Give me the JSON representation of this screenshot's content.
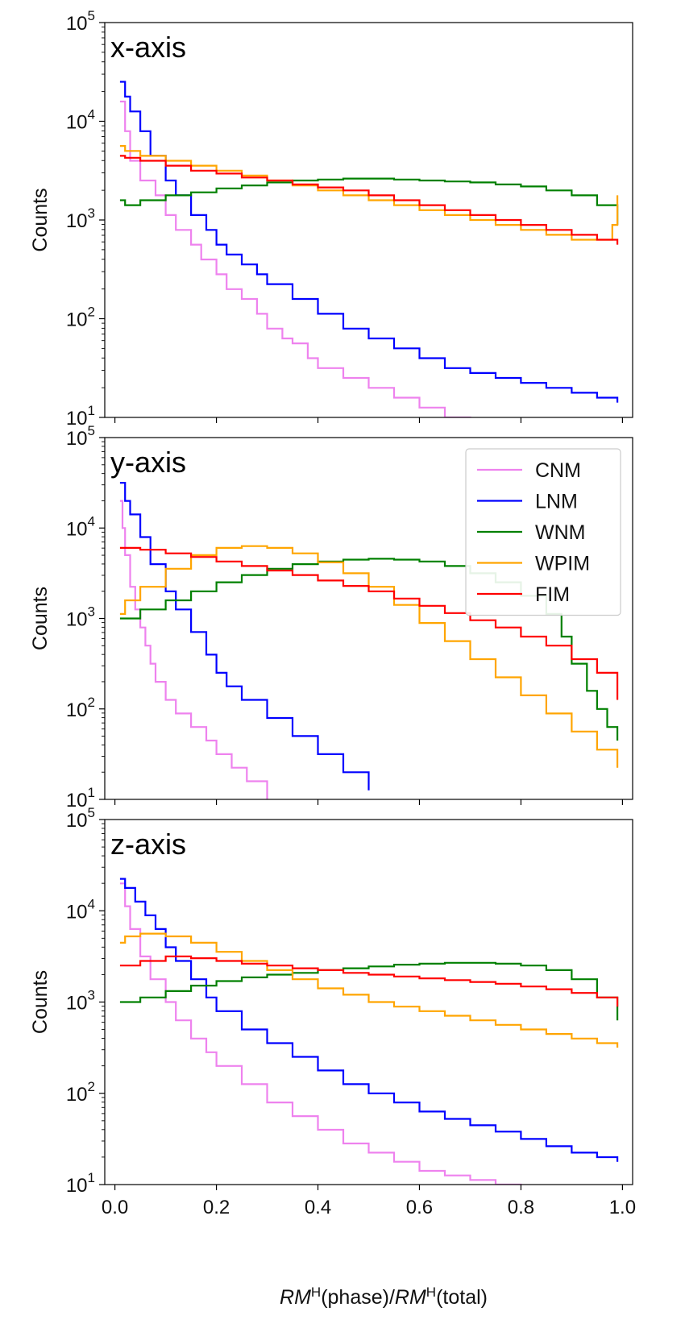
{
  "chart_data": {
    "type": "histogram",
    "shared_xlabel": "RMᴴ(phase)/RMᴴ(total)",
    "xlabel_parts": {
      "rm": "RM",
      "sup": "H",
      "phase": "(phase)/",
      "total": "(total)"
    },
    "xlim": [
      -0.02,
      1.02
    ],
    "x_ticks": [
      0.0,
      0.2,
      0.4,
      0.6,
      0.8,
      1.0
    ],
    "x_tick_labels": [
      "0.0",
      "0.2",
      "0.4",
      "0.6",
      "0.8",
      "1.0"
    ],
    "y_tick_labels": [
      {
        "base": "10",
        "exp": "1"
      },
      {
        "base": "10",
        "exp": "2"
      },
      {
        "base": "10",
        "exp": "3"
      },
      {
        "base": "10",
        "exp": "4"
      },
      {
        "base": "10",
        "exp": "5"
      }
    ],
    "colors": {
      "CNM": "#ee82ee",
      "LNM": "#0000ff",
      "WNM": "#008000",
      "WPIM": "#ffa500",
      "FIM": "#ff0000"
    },
    "legend": {
      "placement": "top-right",
      "panel": "y-axis",
      "entries": [
        "CNM",
        "LNM",
        "WNM",
        "WPIM",
        "FIM"
      ]
    },
    "panels": [
      {
        "label": "x-axis",
        "ylabel": "Counts",
        "ylim_log10": [
          1.0,
          5.0
        ],
        "show_x_tick_labels": false,
        "series": [
          {
            "name": "CNM",
            "x": [
              0.01,
              0.02,
              0.03,
              0.05,
              0.08,
              0.1,
              0.12,
              0.15,
              0.17,
              0.2,
              0.22,
              0.25,
              0.28,
              0.3,
              0.33,
              0.35,
              0.38,
              0.4,
              0.45,
              0.5,
              0.55,
              0.6,
              0.65,
              0.7
            ],
            "logy": [
              4.2,
              3.9,
              3.6,
              3.4,
              3.25,
              3.05,
              2.9,
              2.75,
              2.6,
              2.45,
              2.3,
              2.2,
              2.05,
              1.9,
              1.8,
              1.75,
              1.6,
              1.5,
              1.4,
              1.3,
              1.2,
              1.1,
              1.0,
              0.9
            ]
          },
          {
            "name": "LNM",
            "x": [
              0.01,
              0.02,
              0.03,
              0.05,
              0.07,
              0.1,
              0.12,
              0.15,
              0.18,
              0.2,
              0.22,
              0.25,
              0.28,
              0.3,
              0.35,
              0.4,
              0.45,
              0.5,
              0.55,
              0.6,
              0.65,
              0.7,
              0.75,
              0.8,
              0.85,
              0.9,
              0.95,
              0.99
            ],
            "logy": [
              4.4,
              4.25,
              4.1,
              3.9,
              3.65,
              3.4,
              3.25,
              3.05,
              2.9,
              2.75,
              2.65,
              2.55,
              2.45,
              2.35,
              2.2,
              2.05,
              1.9,
              1.8,
              1.7,
              1.6,
              1.5,
              1.45,
              1.4,
              1.35,
              1.3,
              1.25,
              1.2,
              1.15
            ]
          },
          {
            "name": "WNM",
            "x": [
              0.01,
              0.02,
              0.05,
              0.1,
              0.15,
              0.2,
              0.25,
              0.3,
              0.35,
              0.4,
              0.45,
              0.5,
              0.55,
              0.6,
              0.65,
              0.7,
              0.75,
              0.8,
              0.85,
              0.9,
              0.95,
              0.99
            ],
            "logy": [
              3.2,
              3.15,
              3.2,
              3.25,
              3.28,
              3.32,
              3.35,
              3.38,
              3.4,
              3.41,
              3.42,
              3.42,
              3.41,
              3.4,
              3.39,
              3.38,
              3.36,
              3.34,
              3.3,
              3.25,
              3.15,
              2.95
            ]
          },
          {
            "name": "WPIM",
            "x": [
              0.01,
              0.02,
              0.05,
              0.1,
              0.15,
              0.2,
              0.25,
              0.3,
              0.35,
              0.4,
              0.45,
              0.5,
              0.55,
              0.6,
              0.65,
              0.7,
              0.75,
              0.8,
              0.85,
              0.9,
              0.95,
              0.98,
              0.99
            ],
            "logy": [
              3.75,
              3.7,
              3.65,
              3.6,
              3.55,
              3.5,
              3.45,
              3.4,
              3.35,
              3.3,
              3.25,
              3.2,
              3.15,
              3.1,
              3.05,
              3.0,
              2.95,
              2.9,
              2.85,
              2.8,
              2.8,
              2.95,
              3.25
            ]
          },
          {
            "name": "FIM",
            "x": [
              0.01,
              0.02,
              0.05,
              0.1,
              0.15,
              0.2,
              0.25,
              0.3,
              0.35,
              0.4,
              0.45,
              0.5,
              0.55,
              0.6,
              0.65,
              0.7,
              0.75,
              0.8,
              0.85,
              0.9,
              0.95,
              0.99
            ],
            "logy": [
              3.65,
              3.63,
              3.6,
              3.55,
              3.5,
              3.47,
              3.43,
              3.4,
              3.36,
              3.33,
              3.3,
              3.25,
              3.2,
              3.15,
              3.1,
              3.05,
              3.0,
              2.95,
              2.9,
              2.85,
              2.8,
              2.75
            ]
          }
        ]
      },
      {
        "label": "y-axis",
        "ylabel": "Counts",
        "ylim_log10": [
          1.0,
          5.0
        ],
        "show_x_tick_labels": false,
        "series": [
          {
            "name": "CNM",
            "x": [
              0.01,
              0.015,
              0.02,
              0.03,
              0.04,
              0.05,
              0.06,
              0.07,
              0.08,
              0.1,
              0.12,
              0.15,
              0.18,
              0.2,
              0.23,
              0.26,
              0.3
            ],
            "logy": [
              4.3,
              4.0,
              3.7,
              3.35,
              3.1,
              2.9,
              2.7,
              2.5,
              2.3,
              2.1,
              1.95,
              1.8,
              1.65,
              1.5,
              1.35,
              1.2,
              1.0
            ]
          },
          {
            "name": "LNM",
            "x": [
              0.01,
              0.02,
              0.03,
              0.05,
              0.07,
              0.1,
              0.12,
              0.15,
              0.18,
              0.2,
              0.22,
              0.25,
              0.3,
              0.35,
              0.4,
              0.45,
              0.5
            ],
            "logy": [
              4.5,
              4.3,
              4.15,
              3.9,
              3.6,
              3.3,
              3.1,
              2.85,
              2.6,
              2.4,
              2.25,
              2.1,
              1.9,
              1.7,
              1.5,
              1.3,
              1.1
            ]
          },
          {
            "name": "WNM",
            "x": [
              0.01,
              0.05,
              0.1,
              0.15,
              0.2,
              0.25,
              0.3,
              0.35,
              0.4,
              0.45,
              0.5,
              0.55,
              0.6,
              0.65,
              0.7,
              0.75,
              0.8,
              0.85,
              0.88,
              0.9,
              0.93,
              0.95,
              0.97,
              0.99
            ],
            "logy": [
              3.0,
              3.1,
              3.2,
              3.3,
              3.4,
              3.48,
              3.55,
              3.6,
              3.63,
              3.65,
              3.66,
              3.65,
              3.63,
              3.58,
              3.5,
              3.4,
              3.25,
              3.05,
              2.8,
              2.5,
              2.2,
              2.0,
              1.8,
              1.65
            ]
          },
          {
            "name": "WPIM",
            "x": [
              0.01,
              0.02,
              0.05,
              0.1,
              0.15,
              0.2,
              0.25,
              0.3,
              0.35,
              0.4,
              0.45,
              0.5,
              0.55,
              0.6,
              0.65,
              0.7,
              0.75,
              0.8,
              0.85,
              0.9,
              0.95,
              0.99
            ],
            "logy": [
              3.05,
              3.2,
              3.35,
              3.55,
              3.7,
              3.78,
              3.8,
              3.78,
              3.72,
              3.62,
              3.5,
              3.35,
              3.15,
              2.95,
              2.75,
              2.55,
              2.35,
              2.15,
              1.95,
              1.75,
              1.55,
              1.35
            ]
          },
          {
            "name": "FIM",
            "x": [
              0.01,
              0.05,
              0.1,
              0.15,
              0.2,
              0.25,
              0.3,
              0.35,
              0.4,
              0.45,
              0.5,
              0.55,
              0.6,
              0.65,
              0.7,
              0.75,
              0.8,
              0.85,
              0.9,
              0.95,
              0.99
            ],
            "logy": [
              3.78,
              3.76,
              3.72,
              3.68,
              3.63,
              3.58,
              3.53,
              3.48,
              3.42,
              3.36,
              3.3,
              3.22,
              3.14,
              3.06,
              2.98,
              2.9,
              2.8,
              2.7,
              2.55,
              2.4,
              2.1
            ]
          }
        ]
      },
      {
        "label": "z-axis",
        "ylabel": "Counts",
        "ylim_log10": [
          1.0,
          5.0
        ],
        "show_x_tick_labels": true,
        "series": [
          {
            "name": "CNM",
            "x": [
              0.01,
              0.02,
              0.03,
              0.05,
              0.07,
              0.1,
              0.12,
              0.15,
              0.18,
              0.2,
              0.25,
              0.3,
              0.35,
              0.4,
              0.45,
              0.5,
              0.55,
              0.6,
              0.65,
              0.7,
              0.75,
              0.8
            ],
            "logy": [
              4.3,
              4.05,
              3.8,
              3.5,
              3.25,
              3.0,
              2.8,
              2.6,
              2.45,
              2.3,
              2.1,
              1.9,
              1.75,
              1.6,
              1.45,
              1.35,
              1.25,
              1.15,
              1.1,
              1.05,
              1.0,
              0.95
            ]
          },
          {
            "name": "LNM",
            "x": [
              0.01,
              0.02,
              0.04,
              0.06,
              0.08,
              0.1,
              0.12,
              0.15,
              0.18,
              0.2,
              0.25,
              0.3,
              0.35,
              0.4,
              0.45,
              0.5,
              0.55,
              0.6,
              0.65,
              0.7,
              0.75,
              0.8,
              0.85,
              0.9,
              0.95,
              0.99
            ],
            "logy": [
              4.35,
              4.25,
              4.1,
              3.95,
              3.8,
              3.6,
              3.45,
              3.25,
              3.05,
              2.9,
              2.7,
              2.55,
              2.4,
              2.25,
              2.1,
              2.0,
              1.9,
              1.8,
              1.72,
              1.65,
              1.58,
              1.5,
              1.42,
              1.35,
              1.3,
              1.25
            ]
          },
          {
            "name": "WNM",
            "x": [
              0.01,
              0.05,
              0.1,
              0.15,
              0.2,
              0.25,
              0.3,
              0.35,
              0.4,
              0.45,
              0.5,
              0.55,
              0.6,
              0.65,
              0.7,
              0.75,
              0.8,
              0.85,
              0.9,
              0.95,
              0.99
            ],
            "logy": [
              3.0,
              3.05,
              3.12,
              3.18,
              3.23,
              3.27,
              3.3,
              3.32,
              3.35,
              3.37,
              3.39,
              3.41,
              3.42,
              3.43,
              3.43,
              3.42,
              3.4,
              3.35,
              3.25,
              3.05,
              2.8
            ]
          },
          {
            "name": "WPIM",
            "x": [
              0.01,
              0.02,
              0.05,
              0.1,
              0.15,
              0.2,
              0.25,
              0.3,
              0.35,
              0.4,
              0.45,
              0.5,
              0.55,
              0.6,
              0.65,
              0.7,
              0.75,
              0.8,
              0.85,
              0.9,
              0.95,
              0.99
            ],
            "logy": [
              3.65,
              3.72,
              3.75,
              3.72,
              3.65,
              3.55,
              3.45,
              3.35,
              3.25,
              3.15,
              3.08,
              3.0,
              2.95,
              2.9,
              2.85,
              2.8,
              2.75,
              2.7,
              2.65,
              2.6,
              2.55,
              2.5
            ]
          },
          {
            "name": "FIM",
            "x": [
              0.01,
              0.05,
              0.1,
              0.15,
              0.2,
              0.25,
              0.3,
              0.35,
              0.4,
              0.45,
              0.5,
              0.55,
              0.6,
              0.65,
              0.7,
              0.75,
              0.8,
              0.85,
              0.9,
              0.95,
              0.99
            ],
            "logy": [
              3.4,
              3.45,
              3.5,
              3.48,
              3.45,
              3.42,
              3.4,
              3.37,
              3.35,
              3.32,
              3.3,
              3.28,
              3.26,
              3.24,
              3.22,
              3.2,
              3.17,
              3.14,
              3.1,
              3.05,
              2.95
            ]
          }
        ]
      }
    ]
  }
}
